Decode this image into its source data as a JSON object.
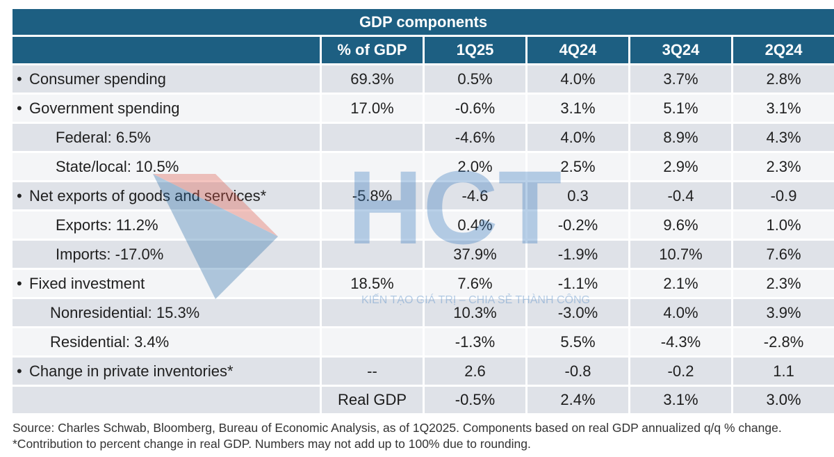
{
  "chart_data": {
    "type": "table",
    "title": "GDP components",
    "columns": [
      "",
      "% of GDP",
      "1Q25",
      "4Q24",
      "3Q24",
      "2Q24"
    ],
    "rows": [
      {
        "label": "Consumer spending",
        "bullet": true,
        "indent": 0,
        "share": "69.3%",
        "values": [
          "0.5%",
          "4.0%",
          "3.7%",
          "2.8%"
        ]
      },
      {
        "label": "Government spending",
        "bullet": true,
        "indent": 0,
        "share": "17.0%",
        "values": [
          "-0.6%",
          "3.1%",
          "5.1%",
          "3.1%"
        ]
      },
      {
        "label": "Federal: 6.5%",
        "bullet": false,
        "indent": 1,
        "share": "",
        "values": [
          "-4.6%",
          "4.0%",
          "8.9%",
          "4.3%"
        ]
      },
      {
        "label": "State/local: 10.5%",
        "bullet": false,
        "indent": 1,
        "share": "",
        "values": [
          "2.0%",
          "2.5%",
          "2.9%",
          "2.3%"
        ]
      },
      {
        "label": "Net exports of goods and services*",
        "bullet": true,
        "indent": 0,
        "share": "-5.8%",
        "values": [
          "-4.6",
          "0.3",
          "-0.4",
          "-0.9"
        ]
      },
      {
        "label": "Exports: 11.2%",
        "bullet": false,
        "indent": 1,
        "share": "",
        "values": [
          "0.4%",
          "-0.2%",
          "9.6%",
          "1.0%"
        ]
      },
      {
        "label": "Imports: -17.0%",
        "bullet": false,
        "indent": 1,
        "share": "",
        "values": [
          "37.9%",
          "-1.9%",
          "10.7%",
          "7.6%"
        ]
      },
      {
        "label": "Fixed investment",
        "bullet": true,
        "indent": 0,
        "share": "18.5%",
        "values": [
          "7.6%",
          "-1.1%",
          "2.1%",
          "2.3%"
        ]
      },
      {
        "label": "Nonresidential: 15.3%",
        "bullet": false,
        "indent": 2,
        "share": "",
        "values": [
          "10.3%",
          "-3.0%",
          "4.0%",
          "3.9%"
        ]
      },
      {
        "label": "Residential: 3.4%",
        "bullet": false,
        "indent": 2,
        "share": "",
        "values": [
          "-1.3%",
          "5.5%",
          "-4.3%",
          "-2.8%"
        ]
      },
      {
        "label": "Change in private inventories*",
        "bullet": true,
        "indent": 0,
        "share": "--",
        "values": [
          "2.6",
          "-0.8",
          "-0.2",
          "1.1"
        ]
      }
    ],
    "total": {
      "label": "Real GDP",
      "values": [
        "-0.5%",
        "2.4%",
        "3.1%",
        "3.0%"
      ]
    }
  },
  "bullet_char": "•",
  "footnote": "Source: Charles Schwab, Bloomberg, Bureau of Economic Analysis, as of 1Q2025. Components based on real GDP annualized q/q % change. *Contribution to percent change in real GDP. Numbers may not add up to 100% due to rounding.",
  "watermark": {
    "text": "HCT",
    "tagline": "KIẾN TẠO GIÁ TRỊ – CHIA SẺ THÀNH CÔNG"
  },
  "colors": {
    "header": "#1d5f82",
    "shade": "#dfe2e8",
    "plain": "#f4f5f7"
  }
}
